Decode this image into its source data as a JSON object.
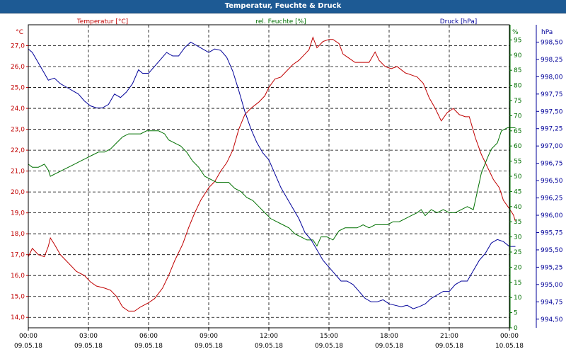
{
  "window": {
    "title": "Temperatur, Feuchte & Druck"
  },
  "chart_data": {
    "type": "line",
    "title": "Temperatur, Feuchte & Druck",
    "x_labels": [
      {
        "time": "00:00",
        "date": "09.05.18"
      },
      {
        "time": "03:00",
        "date": "09.05.18"
      },
      {
        "time": "06:00",
        "date": "09.05.18"
      },
      {
        "time": "09:00",
        "date": "09.05.18"
      },
      {
        "time": "12:00",
        "date": "09.05.18"
      },
      {
        "time": "15:00",
        "date": "09.05.18"
      },
      {
        "time": "18:00",
        "date": "09.05.18"
      },
      {
        "time": "21:00",
        "date": "09.05.18"
      },
      {
        "time": "00:00",
        "date": "10.05.18"
      }
    ],
    "xlim": [
      0,
      24
    ],
    "grid": true,
    "axes": {
      "temperature": {
        "header": "°C",
        "ylim": [
          13.5,
          28.0
        ],
        "ticks": [
          "14,0",
          "15,0",
          "16,0",
          "17,0",
          "18,0",
          "19,0",
          "20,0",
          "21,0",
          "22,0",
          "23,0",
          "24,0",
          "25,0",
          "26,0",
          "27,0"
        ],
        "tick_values": [
          14,
          15,
          16,
          17,
          18,
          19,
          20,
          21,
          22,
          23,
          24,
          25,
          26,
          27
        ]
      },
      "humidity": {
        "header": "%",
        "ylim": [
          0,
          100
        ],
        "ticks": [
          "0",
          "5",
          "10",
          "15",
          "20",
          "25",
          "30",
          "35",
          "40",
          "45",
          "50",
          "55",
          "60",
          "65",
          "70",
          "75",
          "80",
          "85",
          "90",
          "95",
          "%"
        ],
        "tick_values": [
          0,
          5,
          10,
          15,
          20,
          25,
          30,
          35,
          40,
          45,
          50,
          55,
          60,
          65,
          70,
          75,
          80,
          85,
          90,
          95
        ]
      },
      "pressure": {
        "header": "hPa",
        "ylim": [
          994.375,
          998.75
        ],
        "ticks": [
          "994,50",
          "994,75",
          "995,00",
          "995,25",
          "995,50",
          "995,75",
          "996,00",
          "996,25",
          "996,50",
          "996,75",
          "997,00",
          "997,25",
          "997,50",
          "997,75",
          "998,00",
          "998,25",
          "998,50"
        ],
        "tick_values": [
          994.5,
          994.75,
          995.0,
          995.25,
          995.5,
          995.75,
          996.0,
          996.25,
          996.5,
          996.75,
          997.0,
          997.25,
          997.5,
          997.75,
          998.0,
          998.25,
          998.5
        ]
      }
    },
    "series": [
      {
        "name": "Temperatur [°C]",
        "axis": "temperature",
        "color": "#c00000",
        "points": [
          [
            0,
            16.9
          ],
          [
            0.2,
            17.3
          ],
          [
            0.5,
            17.0
          ],
          [
            0.8,
            16.9
          ],
          [
            1.0,
            17.4
          ],
          [
            1.1,
            17.8
          ],
          [
            1.3,
            17.5
          ],
          [
            1.6,
            17.0
          ],
          [
            2.0,
            16.6
          ],
          [
            2.4,
            16.2
          ],
          [
            2.8,
            16.0
          ],
          [
            3.1,
            15.7
          ],
          [
            3.4,
            15.5
          ],
          [
            3.8,
            15.4
          ],
          [
            4.1,
            15.3
          ],
          [
            4.4,
            15.0
          ],
          [
            4.7,
            14.5
          ],
          [
            5.0,
            14.3
          ],
          [
            5.3,
            14.3
          ],
          [
            5.6,
            14.5
          ],
          [
            6.0,
            14.7
          ],
          [
            6.3,
            14.9
          ],
          [
            6.7,
            15.4
          ],
          [
            7.0,
            16.0
          ],
          [
            7.3,
            16.7
          ],
          [
            7.7,
            17.5
          ],
          [
            8.0,
            18.3
          ],
          [
            8.3,
            19.0
          ],
          [
            8.6,
            19.6
          ],
          [
            9.0,
            20.2
          ],
          [
            9.3,
            20.5
          ],
          [
            9.6,
            21.0
          ],
          [
            9.9,
            21.4
          ],
          [
            10.2,
            22.0
          ],
          [
            10.5,
            23.0
          ],
          [
            10.8,
            23.7
          ],
          [
            11.1,
            24.0
          ],
          [
            11.5,
            24.3
          ],
          [
            11.8,
            24.6
          ],
          [
            12.0,
            25.0
          ],
          [
            12.3,
            25.4
          ],
          [
            12.6,
            25.5
          ],
          [
            12.9,
            25.8
          ],
          [
            13.2,
            26.1
          ],
          [
            13.5,
            26.3
          ],
          [
            13.8,
            26.6
          ],
          [
            14.0,
            26.8
          ],
          [
            14.2,
            27.4
          ],
          [
            14.4,
            26.9
          ],
          [
            14.7,
            27.2
          ],
          [
            15.0,
            27.3
          ],
          [
            15.2,
            27.3
          ],
          [
            15.5,
            27.1
          ],
          [
            15.7,
            26.6
          ],
          [
            16.0,
            26.4
          ],
          [
            16.3,
            26.2
          ],
          [
            16.7,
            26.2
          ],
          [
            17.0,
            26.2
          ],
          [
            17.3,
            26.7
          ],
          [
            17.5,
            26.3
          ],
          [
            17.8,
            26.0
          ],
          [
            18.1,
            25.9
          ],
          [
            18.4,
            26.0
          ],
          [
            18.8,
            25.7
          ],
          [
            19.1,
            25.6
          ],
          [
            19.4,
            25.5
          ],
          [
            19.7,
            25.2
          ],
          [
            20.0,
            24.5
          ],
          [
            20.3,
            24.0
          ],
          [
            20.6,
            23.4
          ],
          [
            20.9,
            23.8
          ],
          [
            21.2,
            24.0
          ],
          [
            21.5,
            23.7
          ],
          [
            21.8,
            23.6
          ],
          [
            22.0,
            23.6
          ],
          [
            22.3,
            22.6
          ],
          [
            22.6,
            21.8
          ],
          [
            22.9,
            21.2
          ],
          [
            23.2,
            20.6
          ],
          [
            23.5,
            20.2
          ],
          [
            23.7,
            19.6
          ],
          [
            24.0,
            19.2
          ],
          [
            24.2,
            18.9
          ],
          [
            24.3,
            18.6
          ]
        ]
      },
      {
        "name": "rel. Feuchte [%]",
        "axis": "humidity",
        "color": "#007000",
        "points": [
          [
            0,
            54
          ],
          [
            0.2,
            53
          ],
          [
            0.5,
            53
          ],
          [
            0.8,
            54
          ],
          [
            1.0,
            52
          ],
          [
            1.1,
            50
          ],
          [
            1.4,
            51
          ],
          [
            1.7,
            52
          ],
          [
            2.0,
            53
          ],
          [
            2.3,
            54
          ],
          [
            2.6,
            55
          ],
          [
            2.9,
            56
          ],
          [
            3.2,
            57
          ],
          [
            3.5,
            58
          ],
          [
            3.8,
            58
          ],
          [
            4.1,
            59
          ],
          [
            4.4,
            61
          ],
          [
            4.7,
            63
          ],
          [
            5.0,
            64
          ],
          [
            5.3,
            64
          ],
          [
            5.6,
            64
          ],
          [
            5.9,
            65
          ],
          [
            6.2,
            65
          ],
          [
            6.5,
            65
          ],
          [
            6.8,
            64
          ],
          [
            7.0,
            62
          ],
          [
            7.3,
            61
          ],
          [
            7.6,
            60
          ],
          [
            7.9,
            58
          ],
          [
            8.2,
            55
          ],
          [
            8.5,
            53
          ],
          [
            8.8,
            50
          ],
          [
            9.1,
            49
          ],
          [
            9.4,
            48
          ],
          [
            9.7,
            48
          ],
          [
            10.0,
            48
          ],
          [
            10.3,
            46
          ],
          [
            10.6,
            45
          ],
          [
            10.9,
            43
          ],
          [
            11.2,
            42
          ],
          [
            11.5,
            40
          ],
          [
            11.8,
            38
          ],
          [
            12.1,
            36
          ],
          [
            12.4,
            35
          ],
          [
            12.7,
            34
          ],
          [
            13.0,
            33
          ],
          [
            13.3,
            31
          ],
          [
            13.6,
            30
          ],
          [
            13.9,
            29
          ],
          [
            14.2,
            29
          ],
          [
            14.4,
            27
          ],
          [
            14.6,
            30
          ],
          [
            14.9,
            30
          ],
          [
            15.2,
            29
          ],
          [
            15.5,
            32
          ],
          [
            15.8,
            33
          ],
          [
            16.1,
            33
          ],
          [
            16.4,
            33
          ],
          [
            16.7,
            34
          ],
          [
            17.0,
            33
          ],
          [
            17.3,
            34
          ],
          [
            17.6,
            34
          ],
          [
            17.9,
            34
          ],
          [
            18.2,
            35
          ],
          [
            18.5,
            35
          ],
          [
            18.8,
            36
          ],
          [
            19.1,
            37
          ],
          [
            19.4,
            38
          ],
          [
            19.6,
            39
          ],
          [
            19.8,
            37
          ],
          [
            20.1,
            39
          ],
          [
            20.4,
            38
          ],
          [
            20.7,
            39
          ],
          [
            21.0,
            38
          ],
          [
            21.3,
            38
          ],
          [
            21.6,
            39
          ],
          [
            21.9,
            40
          ],
          [
            22.2,
            39
          ],
          [
            22.4,
            45
          ],
          [
            22.6,
            51
          ],
          [
            22.9,
            56
          ],
          [
            23.1,
            59
          ],
          [
            23.4,
            61
          ],
          [
            23.6,
            65
          ],
          [
            23.9,
            66
          ],
          [
            24.2,
            66
          ],
          [
            24.3,
            66
          ]
        ]
      },
      {
        "name": "Druck [hPa]",
        "axis": "pressure",
        "color": "#000099",
        "points": [
          [
            0,
            998.4
          ],
          [
            0.2,
            998.35
          ],
          [
            0.5,
            998.2
          ],
          [
            0.8,
            998.05
          ],
          [
            1.0,
            997.95
          ],
          [
            1.3,
            997.98
          ],
          [
            1.6,
            997.9
          ],
          [
            1.9,
            997.85
          ],
          [
            2.2,
            997.8
          ],
          [
            2.5,
            997.75
          ],
          [
            2.8,
            997.65
          ],
          [
            3.1,
            997.58
          ],
          [
            3.4,
            997.55
          ],
          [
            3.7,
            997.55
          ],
          [
            4.0,
            997.6
          ],
          [
            4.3,
            997.75
          ],
          [
            4.6,
            997.7
          ],
          [
            4.9,
            997.78
          ],
          [
            5.2,
            997.9
          ],
          [
            5.5,
            998.1
          ],
          [
            5.7,
            998.05
          ],
          [
            6.0,
            998.05
          ],
          [
            6.3,
            998.15
          ],
          [
            6.6,
            998.25
          ],
          [
            6.9,
            998.35
          ],
          [
            7.2,
            998.3
          ],
          [
            7.5,
            998.3
          ],
          [
            7.8,
            998.42
          ],
          [
            8.1,
            998.5
          ],
          [
            8.4,
            998.45
          ],
          [
            8.7,
            998.4
          ],
          [
            9.0,
            998.35
          ],
          [
            9.3,
            998.4
          ],
          [
            9.6,
            998.38
          ],
          [
            9.9,
            998.28
          ],
          [
            10.2,
            998.08
          ],
          [
            10.5,
            997.8
          ],
          [
            10.8,
            997.5
          ],
          [
            11.1,
            997.25
          ],
          [
            11.4,
            997.05
          ],
          [
            11.7,
            996.9
          ],
          [
            12.0,
            996.8
          ],
          [
            12.3,
            996.6
          ],
          [
            12.6,
            996.4
          ],
          [
            12.9,
            996.25
          ],
          [
            13.2,
            996.1
          ],
          [
            13.5,
            995.95
          ],
          [
            13.8,
            995.75
          ],
          [
            14.1,
            995.65
          ],
          [
            14.4,
            995.5
          ],
          [
            14.7,
            995.35
          ],
          [
            15.0,
            995.25
          ],
          [
            15.3,
            995.15
          ],
          [
            15.6,
            995.05
          ],
          [
            15.9,
            995.05
          ],
          [
            16.2,
            995.0
          ],
          [
            16.5,
            994.9
          ],
          [
            16.8,
            994.8
          ],
          [
            17.1,
            994.75
          ],
          [
            17.4,
            994.75
          ],
          [
            17.7,
            994.78
          ],
          [
            18.0,
            994.72
          ],
          [
            18.3,
            994.7
          ],
          [
            18.6,
            994.68
          ],
          [
            18.9,
            994.7
          ],
          [
            19.2,
            994.65
          ],
          [
            19.5,
            994.68
          ],
          [
            19.8,
            994.72
          ],
          [
            20.1,
            994.8
          ],
          [
            20.4,
            994.85
          ],
          [
            20.7,
            994.9
          ],
          [
            21.0,
            994.9
          ],
          [
            21.3,
            995.0
          ],
          [
            21.6,
            995.05
          ],
          [
            21.9,
            995.05
          ],
          [
            22.2,
            995.2
          ],
          [
            22.5,
            995.35
          ],
          [
            22.8,
            995.45
          ],
          [
            23.1,
            995.6
          ],
          [
            23.4,
            995.65
          ],
          [
            23.7,
            995.62
          ],
          [
            24.0,
            995.55
          ],
          [
            24.3,
            995.55
          ]
        ]
      }
    ]
  }
}
